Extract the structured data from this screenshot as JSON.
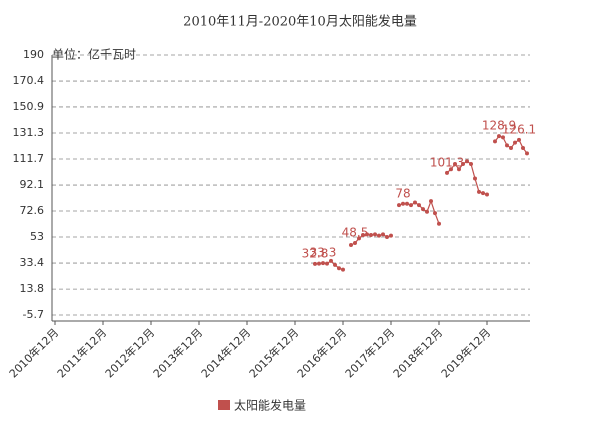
{
  "chart_data": {
    "type": "line",
    "title": "2010年11月-2020年10月太阳能发电量",
    "y_label": "单位：亿千瓦时",
    "categories": [
      null,
      "2010年12月",
      null,
      null,
      null,
      null,
      null,
      null,
      null,
      null,
      null,
      null,
      null,
      "2011年12月",
      null,
      null,
      null,
      null,
      null,
      null,
      null,
      null,
      null,
      null,
      null,
      "2012年12月",
      null,
      null,
      null,
      null,
      null,
      null,
      null,
      null,
      null,
      null,
      null,
      "2013年12月",
      null,
      null,
      null,
      null,
      null,
      null,
      null,
      null,
      null,
      null,
      null,
      "2014年12月",
      null,
      null,
      null,
      null,
      null,
      null,
      null,
      null,
      null,
      null,
      null,
      "2015年12月",
      null,
      null,
      null,
      null,
      null,
      null,
      null,
      null,
      null,
      null,
      null,
      "2016年12月",
      null,
      null,
      null,
      null,
      null,
      null,
      null,
      null,
      null,
      null,
      null,
      "2017年12月",
      null,
      null,
      null,
      null,
      null,
      null,
      null,
      null,
      null,
      null,
      null,
      "2018年12月",
      null,
      null,
      null,
      null,
      null,
      null,
      null,
      null,
      null,
      null,
      null,
      "2019年12月",
      null,
      null,
      null,
      null,
      null,
      null,
      null,
      null,
      null,
      null
    ],
    "series": [
      {
        "name": "太阳能发电量",
        "color": "#c0504d",
        "values": [
          null,
          null,
          null,
          null,
          null,
          null,
          null,
          null,
          null,
          null,
          null,
          null,
          null,
          null,
          null,
          null,
          null,
          null,
          null,
          null,
          null,
          null,
          null,
          null,
          null,
          null,
          null,
          null,
          null,
          null,
          null,
          null,
          null,
          null,
          null,
          null,
          null,
          null,
          null,
          null,
          null,
          null,
          null,
          null,
          null,
          null,
          null,
          null,
          null,
          null,
          null,
          null,
          null,
          null,
          null,
          null,
          null,
          null,
          null,
          null,
          null,
          null,
          null,
          null,
          null,
          null,
          32.8,
          33.0,
          33.3,
          33.0,
          35.0,
          32.0,
          29.5,
          28.5,
          null,
          47.0,
          48.5,
          52.0,
          54.5,
          55.0,
          54.5,
          55.0,
          54.0,
          55.0,
          53.0,
          54.0,
          null,
          77.0,
          78,
          78.0,
          77.0,
          79.0,
          77.0,
          74.0,
          72.0,
          80.0,
          71.0,
          63.0,
          null,
          101.3,
          104.0,
          108.0,
          104.0,
          108.0,
          110.0,
          108.0,
          97.0,
          87.0,
          86.0,
          85.0,
          null,
          125.0,
          128.9,
          128.0,
          122.0,
          120.0,
          124.0,
          126.1,
          120.0,
          116.0
        ],
        "value_labels": [
          null,
          null,
          null,
          null,
          null,
          null,
          null,
          null,
          null,
          null,
          null,
          null,
          null,
          null,
          null,
          null,
          null,
          null,
          null,
          null,
          null,
          null,
          null,
          null,
          null,
          null,
          null,
          null,
          null,
          null,
          null,
          null,
          null,
          null,
          null,
          null,
          null,
          null,
          null,
          null,
          null,
          null,
          null,
          null,
          null,
          null,
          null,
          null,
          null,
          null,
          null,
          null,
          null,
          null,
          null,
          null,
          null,
          null,
          null,
          null,
          null,
          null,
          null,
          null,
          null,
          null,
          "32.8",
          null,
          "33.3",
          null,
          null,
          null,
          null,
          null,
          null,
          null,
          "48.5",
          null,
          null,
          null,
          null,
          null,
          null,
          null,
          null,
          null,
          null,
          null,
          "78",
          null,
          null,
          null,
          null,
          null,
          null,
          null,
          null,
          null,
          null,
          "101.3",
          null,
          null,
          null,
          null,
          null,
          null,
          null,
          null,
          null,
          null,
          null,
          null,
          "128.9",
          null,
          null,
          null,
          null,
          "126.1",
          null,
          null
        ]
      }
    ],
    "ylim": [
      -5.7,
      190
    ],
    "yticks": [
      -5.7,
      13.8,
      33.4,
      53,
      72.6,
      92.1,
      111.7,
      131.3,
      150.9,
      170.4,
      190
    ],
    "grid": true,
    "legend": "bottom"
  }
}
